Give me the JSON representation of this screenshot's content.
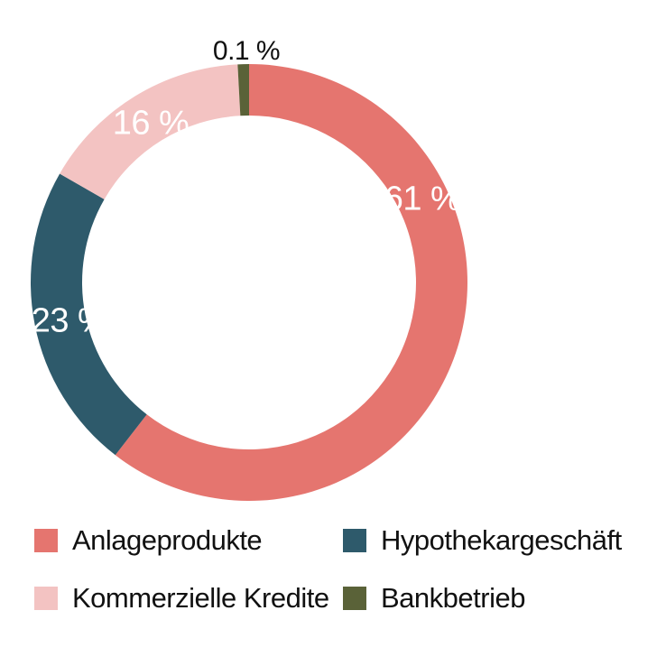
{
  "chart_data": {
    "type": "donut",
    "title": "",
    "unit": "%",
    "direction": "clockwise",
    "start_angle_deg": 0,
    "legend_position": "bottom",
    "text_color": "#111111",
    "value_label_color_inside": "#ffffff",
    "segments": [
      {
        "label": "Anlageprodukte",
        "value": 61,
        "display_label": "61 %",
        "color": "#e5756f"
      },
      {
        "label": "Hypothekargeschäft",
        "value": 23,
        "display_label": "23 %",
        "color": "#2e5a6b"
      },
      {
        "label": "Kommerzielle Kredite",
        "value": 16,
        "display_label": "16 %",
        "color": "#f3c3c2"
      },
      {
        "label": "Bankbetrieb",
        "value": 0.1,
        "display_label": "0.1 %",
        "color": "#5a6238"
      }
    ]
  }
}
